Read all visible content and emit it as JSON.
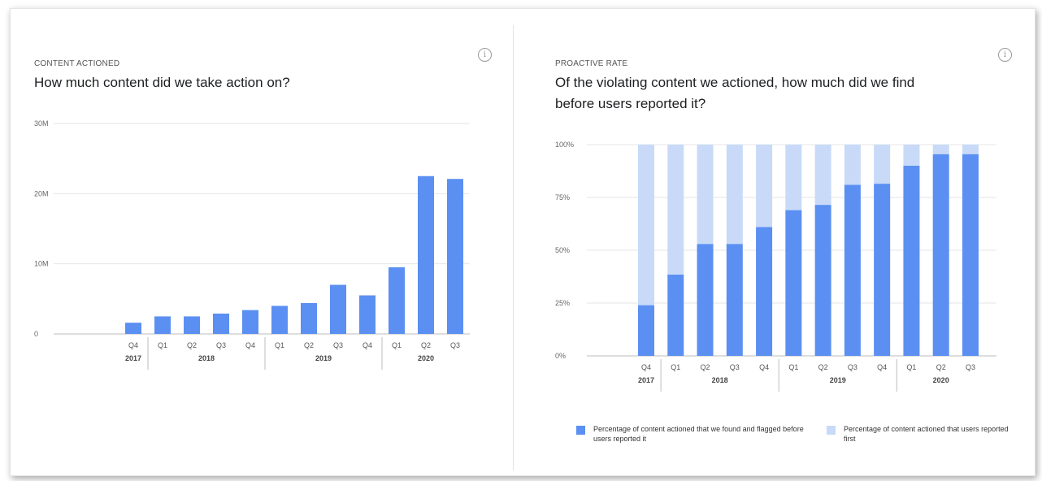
{
  "panels": {
    "left": {
      "eyebrow": "CONTENT ACTIONED",
      "title": "How much content did we take action on?"
    },
    "right": {
      "eyebrow": "PROACTIVE RATE",
      "title": "Of the violating content we actioned, how much did we find before users reported it?"
    }
  },
  "info_icon": {
    "icon": "info-icon",
    "glyph": "i"
  },
  "colors": {
    "primary": "#5b8ff2",
    "light": "#c8daf8",
    "grid": "#e6e6e6"
  },
  "chart_data": [
    {
      "type": "bar",
      "title": "How much content did we take action on?",
      "categories": [
        "Q4 2017",
        "Q1 2018",
        "Q2 2018",
        "Q3 2018",
        "Q4 2018",
        "Q1 2019",
        "Q2 2019",
        "Q3 2019",
        "Q4 2019",
        "Q1 2020",
        "Q2 2020",
        "Q3 2020"
      ],
      "quarter_labels": [
        "Q4",
        "Q1",
        "Q2",
        "Q3",
        "Q4",
        "Q1",
        "Q2",
        "Q3",
        "Q4",
        "Q1",
        "Q2",
        "Q3"
      ],
      "year_groups": [
        {
          "label": "2017",
          "count": 1
        },
        {
          "label": "2018",
          "count": 4
        },
        {
          "label": "2019",
          "count": 4
        },
        {
          "label": "2020",
          "count": 3
        }
      ],
      "values": [
        1600000,
        2500000,
        2500000,
        2900000,
        3400000,
        4000000,
        4400000,
        7000000,
        5500000,
        9500000,
        22500000,
        22100000
      ],
      "ylim": [
        0,
        30000000
      ],
      "yticks": [
        0,
        10000000,
        20000000,
        30000000
      ],
      "ytick_labels": [
        "0",
        "10M",
        "20M",
        "30M"
      ],
      "grid": true
    },
    {
      "type": "bar",
      "stacked": true,
      "title": "Of the violating content we actioned, how much did we find before users reported it?",
      "categories": [
        "Q4 2017",
        "Q1 2018",
        "Q2 2018",
        "Q3 2018",
        "Q4 2018",
        "Q1 2019",
        "Q2 2019",
        "Q3 2019",
        "Q4 2019",
        "Q1 2020",
        "Q2 2020",
        "Q3 2020"
      ],
      "quarter_labels": [
        "Q4",
        "Q1",
        "Q2",
        "Q3",
        "Q4",
        "Q1",
        "Q2",
        "Q3",
        "Q4",
        "Q1",
        "Q2",
        "Q3"
      ],
      "year_groups": [
        {
          "label": "2017",
          "count": 1
        },
        {
          "label": "2018",
          "count": 4
        },
        {
          "label": "2019",
          "count": 4
        },
        {
          "label": "2020",
          "count": 3
        }
      ],
      "series": [
        {
          "name": "Percentage of content actioned that we found and flagged before users reported it",
          "values": [
            24,
            38.5,
            53,
            53,
            61,
            69,
            71.5,
            81,
            81.5,
            90,
            95.5,
            95.5
          ]
        },
        {
          "name": "Percentage of content actioned that users reported first",
          "values": [
            76,
            61.5,
            47,
            47,
            39,
            31,
            28.5,
            19,
            18.5,
            10,
            4.5,
            4.5
          ]
        }
      ],
      "ylim": [
        0,
        100
      ],
      "yticks": [
        0,
        25,
        50,
        75,
        100
      ],
      "ytick_labels": [
        "0%",
        "25%",
        "50%",
        "75%",
        "100%"
      ],
      "grid": true,
      "legend_position": "bottom"
    }
  ]
}
